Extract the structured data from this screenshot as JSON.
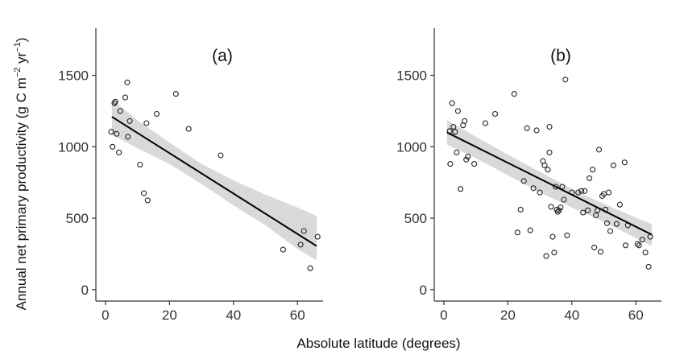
{
  "chart_data": {
    "type": "scatter",
    "xlabel": "Absolute latitude (degrees)",
    "ylabel": {
      "prefix": "Annual net primary productivity (g C m",
      "sup1": "−2",
      "mid": " yr",
      "sup2": "−1",
      "suffix": ")"
    },
    "colors": {
      "point": "#222222",
      "line": "#000000",
      "band": "#d9d9d9",
      "axis": "#333333"
    },
    "panels": [
      {
        "label": "(a)",
        "xlim": [
          -3,
          68
        ],
        "ylim": [
          -80,
          1830
        ],
        "xticks": [
          0,
          20,
          40,
          60
        ],
        "yticks": [
          0,
          500,
          1000,
          1500
        ],
        "regression": {
          "line": [
            [
              2,
              1210
            ],
            [
              66,
              305
            ]
          ],
          "band": {
            "x": [
              2,
              10,
              20,
              30,
              40,
              50,
              60,
              66
            ],
            "upper": [
              1335,
              1185,
              1030,
              880,
              765,
              665,
              575,
              515
            ],
            "lower": [
              1085,
              990,
              880,
              740,
              590,
              450,
              285,
              205
            ]
          }
        },
        "points": [
          [
            1.8,
            1105
          ],
          [
            2.2,
            1000
          ],
          [
            2.8,
            1305
          ],
          [
            3.1,
            1315
          ],
          [
            3.5,
            1090
          ],
          [
            4.2,
            960
          ],
          [
            4.6,
            1250
          ],
          [
            6.2,
            1345
          ],
          [
            6.8,
            1450
          ],
          [
            7.0,
            1070
          ],
          [
            7.6,
            1180
          ],
          [
            10.8,
            875
          ],
          [
            12.0,
            675
          ],
          [
            12.8,
            1165
          ],
          [
            13.2,
            625
          ],
          [
            16.0,
            1230
          ],
          [
            22.0,
            1370
          ],
          [
            26.0,
            1125
          ],
          [
            36.0,
            940
          ],
          [
            55.5,
            280
          ],
          [
            61.0,
            315
          ],
          [
            62.0,
            410
          ],
          [
            64.0,
            150
          ],
          [
            66.3,
            370
          ]
        ]
      },
      {
        "label": "(b)",
        "xlim": [
          -3,
          68
        ],
        "ylim": [
          -80,
          1830
        ],
        "xticks": [
          0,
          20,
          40,
          60
        ],
        "yticks": [
          0,
          500,
          1000,
          1500
        ],
        "regression": {
          "line": [
            [
              1,
              1100
            ],
            [
              65,
              385
            ]
          ],
          "band": {
            "x": [
              1,
              10,
              20,
              30,
              40,
              50,
              60,
              65
            ],
            "upper": [
              1185,
              1070,
              945,
              825,
              705,
              600,
              505,
              460
            ],
            "lower": [
              1015,
              920,
              800,
              680,
              575,
              475,
              360,
              305
            ]
          }
        },
        "points": [
          [
            1.8,
            1110
          ],
          [
            2.0,
            880
          ],
          [
            2.6,
            1305
          ],
          [
            3.0,
            1140
          ],
          [
            3.5,
            1105
          ],
          [
            4.0,
            960
          ],
          [
            4.4,
            1250
          ],
          [
            5.2,
            705
          ],
          [
            6.0,
            1150
          ],
          [
            6.5,
            1180
          ],
          [
            7.0,
            910
          ],
          [
            7.5,
            930
          ],
          [
            9.5,
            880
          ],
          [
            13.0,
            1165
          ],
          [
            16.0,
            1230
          ],
          [
            22.0,
            1370
          ],
          [
            23.0,
            400
          ],
          [
            24.0,
            560
          ],
          [
            25.0,
            760
          ],
          [
            26.0,
            1130
          ],
          [
            27.0,
            415
          ],
          [
            28.0,
            710
          ],
          [
            29.0,
            1115
          ],
          [
            30.0,
            680
          ],
          [
            31.0,
            900
          ],
          [
            31.5,
            870
          ],
          [
            32.0,
            235
          ],
          [
            32.5,
            840
          ],
          [
            33.0,
            1140
          ],
          [
            33.0,
            960
          ],
          [
            33.5,
            580
          ],
          [
            34.0,
            370
          ],
          [
            34.5,
            260
          ],
          [
            35.0,
            720
          ],
          [
            35.3,
            560
          ],
          [
            35.6,
            545
          ],
          [
            36.0,
            555
          ],
          [
            36.5,
            575
          ],
          [
            37.0,
            720
          ],
          [
            37.5,
            630
          ],
          [
            38.0,
            1470
          ],
          [
            38.5,
            380
          ],
          [
            40.0,
            680
          ],
          [
            42.0,
            680
          ],
          [
            43.0,
            690
          ],
          [
            43.5,
            540
          ],
          [
            44.0,
            690
          ],
          [
            45.0,
            555
          ],
          [
            45.5,
            780
          ],
          [
            46.5,
            840
          ],
          [
            47.0,
            295
          ],
          [
            47.5,
            520
          ],
          [
            48.0,
            555
          ],
          [
            48.5,
            980
          ],
          [
            49.0,
            265
          ],
          [
            49.5,
            655
          ],
          [
            50.0,
            670
          ],
          [
            50.5,
            560
          ],
          [
            51.0,
            465
          ],
          [
            51.5,
            680
          ],
          [
            52.0,
            410
          ],
          [
            53.0,
            870
          ],
          [
            54.0,
            460
          ],
          [
            55.0,
            595
          ],
          [
            56.5,
            890
          ],
          [
            56.8,
            310
          ],
          [
            57.5,
            450
          ],
          [
            60.5,
            320
          ],
          [
            61.0,
            310
          ],
          [
            62.0,
            350
          ],
          [
            63.0,
            260
          ],
          [
            64.0,
            160
          ],
          [
            64.5,
            370
          ]
        ]
      }
    ]
  }
}
